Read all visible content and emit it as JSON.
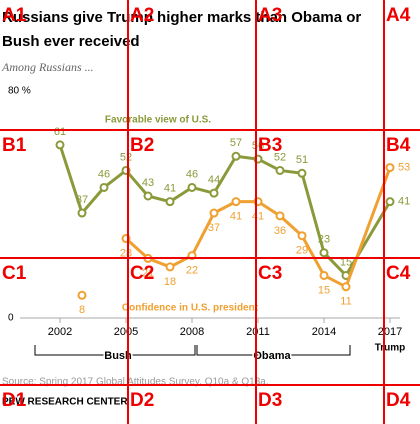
{
  "chart_data": {
    "type": "line",
    "title": [
      "Russians give Trump higher marks than Obama or",
      "Bush ever received"
    ],
    "subtitle": "Among Russians ...",
    "x": [
      2002,
      2003,
      2004,
      2005,
      2006,
      2007,
      2008,
      2009,
      2010,
      2011,
      2012,
      2013,
      2014,
      2015,
      2017
    ],
    "series": [
      {
        "name": "Favorable view of U.S.",
        "color": "#8a9a3a",
        "values": [
          61,
          37,
          46,
          52,
          43,
          41,
          46,
          44,
          57,
          56,
          52,
          51,
          23,
          15,
          41
        ]
      },
      {
        "name": "Confidence in U.S. president",
        "color": "#f0a030",
        "values": [
          null,
          8,
          null,
          28,
          21,
          18,
          22,
          37,
          41,
          41,
          36,
          29,
          15,
          11,
          53
        ]
      }
    ],
    "xlim": [
      2002,
      2017
    ],
    "xticks": [
      2002,
      2005,
      2008,
      2011,
      2014,
      2017
    ],
    "ylim": [
      0,
      80
    ],
    "yticks": [
      0,
      {
        "value": 80,
        "label": "80 %"
      }
    ],
    "eras": [
      "Bush",
      "Obama",
      "Trump"
    ],
    "source": "Source: Spring 2017 Global Attitudes Survey, Q10a & Q13a.",
    "credit": "PEW RESEARCH CENTER"
  },
  "overlay_labels": [
    "A1",
    "A2",
    "A3",
    "A4",
    "B1",
    "B2",
    "B3",
    "B4",
    "C1",
    "C2",
    "C3",
    "C4",
    "D1",
    "D2",
    "D3",
    "D4"
  ]
}
